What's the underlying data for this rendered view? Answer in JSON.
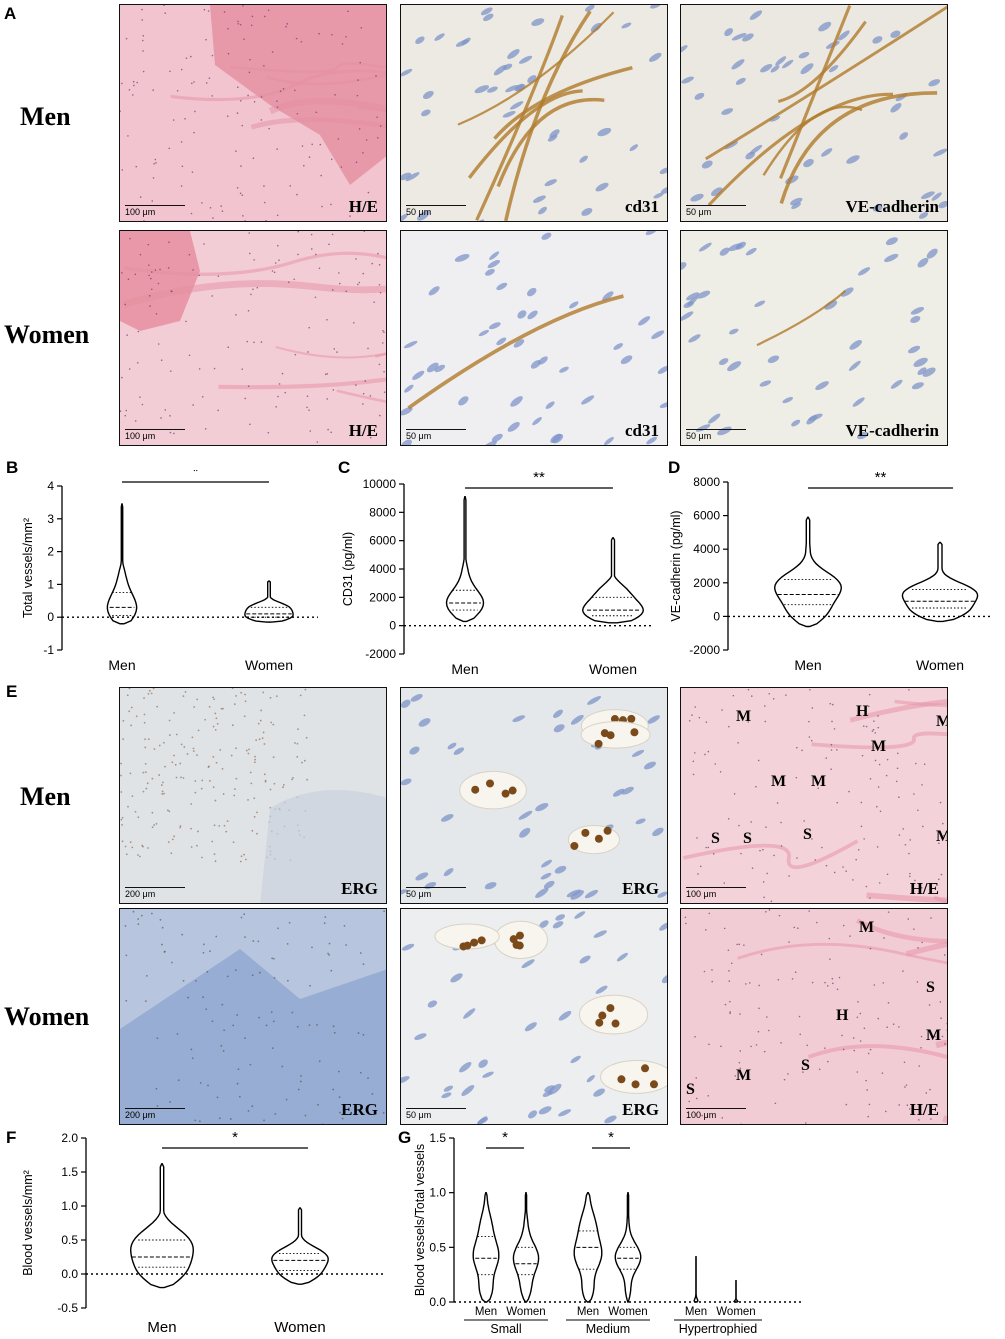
{
  "panels": {
    "A": {
      "label": "A",
      "rows": [
        "Men",
        "Women"
      ],
      "tiles": [
        {
          "stain": "H/E",
          "scale": "100 μm",
          "bg": "#f1c4cf"
        },
        {
          "stain": "cd31",
          "scale": "50 μm",
          "bg": "#eceae2"
        },
        {
          "stain": "VE-cadherin",
          "scale": "50 μm",
          "bg": "#eae8e0"
        },
        {
          "stain": "H/E",
          "scale": "100 μm",
          "bg": "#f3cdd5"
        },
        {
          "stain": "cd31",
          "scale": "50 μm",
          "bg": "#efeff1"
        },
        {
          "stain": "VE-cadherin",
          "scale": "50 μm",
          "bg": "#eeede6"
        }
      ]
    },
    "E": {
      "label": "E",
      "rows": [
        "Men",
        "Women"
      ],
      "tiles": [
        {
          "stain": "ERG",
          "scale": "200 μm",
          "bg": "#dfe3e6"
        },
        {
          "stain": "ERG",
          "scale": "50 μm",
          "bg": "#e4e8ea"
        },
        {
          "stain": "H/E",
          "scale": "100 μm",
          "bg": "#f3d3d9"
        },
        {
          "stain": "ERG",
          "scale": "200 μm",
          "bg": "#b7c6de"
        },
        {
          "stain": "ERG",
          "scale": "50 μm",
          "bg": "#eceeef"
        },
        {
          "stain": "H/E",
          "scale": "100 μm",
          "bg": "#f2ccd4"
        }
      ],
      "markers_men": [
        "H",
        "M",
        "M",
        "M",
        "M",
        "M",
        "M",
        "S",
        "S",
        "S"
      ],
      "markers_women": [
        "M",
        "S",
        "H",
        "M",
        "M",
        "S",
        "S"
      ]
    }
  },
  "chart_data": [
    {
      "id": "B",
      "type": "violin",
      "ylabel": "Total vessels/mm²",
      "categories": [
        "Men",
        "Women"
      ],
      "ylim": [
        -1,
        4
      ],
      "yticks": [
        -1,
        0,
        1,
        2,
        3,
        4
      ],
      "significance": "*",
      "medians": [
        0.3,
        0.1
      ],
      "quartiles": [
        [
          0.05,
          0.75
        ],
        [
          0.0,
          0.3
        ]
      ],
      "ranges": [
        [
          -0.2,
          3.45
        ],
        [
          -0.15,
          1.1
        ]
      ]
    },
    {
      "id": "C",
      "type": "violin",
      "ylabel": "CD31 (pg/ml)",
      "categories": [
        "Men",
        "Women"
      ],
      "ylim": [
        -2000,
        10000
      ],
      "yticks": [
        -2000,
        0,
        2000,
        4000,
        6000,
        8000,
        10000
      ],
      "significance": "**",
      "medians": [
        1600,
        1100
      ],
      "quartiles": [
        [
          1100,
          2500
        ],
        [
          700,
          2000
        ]
      ],
      "ranges": [
        [
          300,
          9100
        ],
        [
          200,
          6200
        ]
      ]
    },
    {
      "id": "D",
      "type": "violin",
      "ylabel": "VE-cadherin (pg/ml)",
      "categories": [
        "Men",
        "Women"
      ],
      "ylim": [
        -2000,
        8000
      ],
      "yticks": [
        -2000,
        0,
        2000,
        4000,
        6000,
        8000
      ],
      "significance": "**",
      "medians": [
        1300,
        900
      ],
      "quartiles": [
        [
          700,
          2200
        ],
        [
          500,
          1600
        ]
      ],
      "ranges": [
        [
          -600,
          5900
        ],
        [
          -300,
          4400
        ]
      ]
    },
    {
      "id": "F",
      "type": "violin",
      "ylabel": "Blood vessels/mm²",
      "categories": [
        "Men",
        "Women"
      ],
      "ylim": [
        -0.5,
        2.0
      ],
      "yticks": [
        -0.5,
        0.0,
        0.5,
        1.0,
        1.5,
        2.0
      ],
      "ytick_labels": [
        "-0.5",
        "0.0",
        "0.5",
        "1.0",
        "1.5",
        "2.0"
      ],
      "significance": "*",
      "medians": [
        0.25,
        0.2
      ],
      "quartiles": [
        [
          0.1,
          0.5
        ],
        [
          0.05,
          0.3
        ]
      ],
      "ranges": [
        [
          -0.2,
          1.62
        ],
        [
          -0.15,
          0.97
        ]
      ]
    },
    {
      "id": "G",
      "type": "violin",
      "ylabel": "Blood vessels/Total vessels",
      "groups": [
        "Small",
        "Medium",
        "Hypertrophied"
      ],
      "categories": [
        "Men",
        "Women",
        "Men",
        "Women",
        "Men",
        "Women"
      ],
      "ylim": [
        0,
        1.5
      ],
      "yticks": [
        0.0,
        0.5,
        1.0,
        1.5
      ],
      "ytick_labels": [
        "0.0",
        "0.5",
        "1.0",
        "1.5"
      ],
      "significance": [
        "*",
        "*"
      ],
      "medians": [
        0.4,
        0.35,
        0.5,
        0.4,
        0.0,
        0.0
      ],
      "quartiles": [
        [
          0.25,
          0.6
        ],
        [
          0.25,
          0.5
        ],
        [
          0.3,
          0.65
        ],
        [
          0.3,
          0.5
        ],
        [
          0.0,
          0.0
        ],
        [
          0.0,
          0.0
        ]
      ],
      "ranges": [
        [
          0.0,
          1.0
        ],
        [
          0.0,
          1.0
        ],
        [
          0.0,
          1.0
        ],
        [
          0.0,
          1.0
        ],
        [
          0.0,
          0.42
        ],
        [
          0.0,
          0.2
        ]
      ]
    }
  ]
}
